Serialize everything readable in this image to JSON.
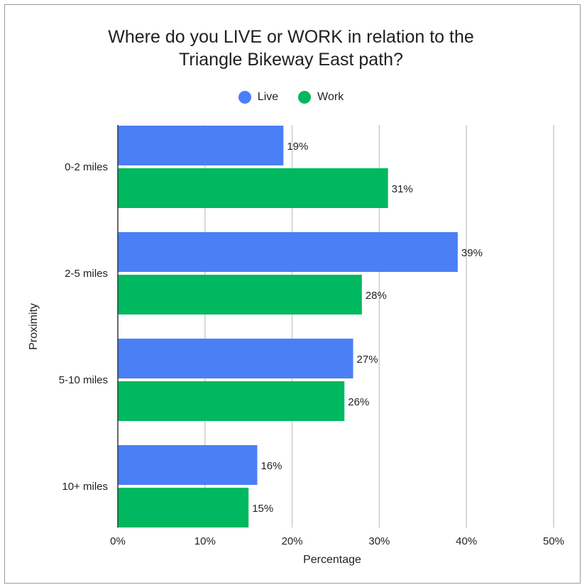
{
  "colors": {
    "live": "#4a7ff6",
    "work": "#00b85f",
    "grid": "#cccccc",
    "axis": "#333333"
  },
  "chart_data": {
    "type": "bar",
    "orientation": "horizontal",
    "title_lines": [
      "Where do you LIVE or WORK in relation to the",
      "Triangle Bikeway East path?"
    ],
    "xlabel": "Percentage",
    "ylabel": "Proximity",
    "categories": [
      "0-2 miles",
      "2-5 miles",
      "5-10 miles",
      "10+ miles"
    ],
    "series": [
      {
        "name": "Live",
        "values": [
          19,
          39,
          27,
          16
        ]
      },
      {
        "name": "Work",
        "values": [
          31,
          28,
          26,
          15
        ]
      }
    ],
    "xlim": [
      0,
      50
    ],
    "x_ticks": [
      0,
      10,
      20,
      30,
      40,
      50
    ],
    "x_tick_labels": [
      "0%",
      "10%",
      "20%",
      "30%",
      "40%",
      "50%"
    ],
    "value_suffix": "%",
    "grid": true,
    "legend_position": "top"
  }
}
